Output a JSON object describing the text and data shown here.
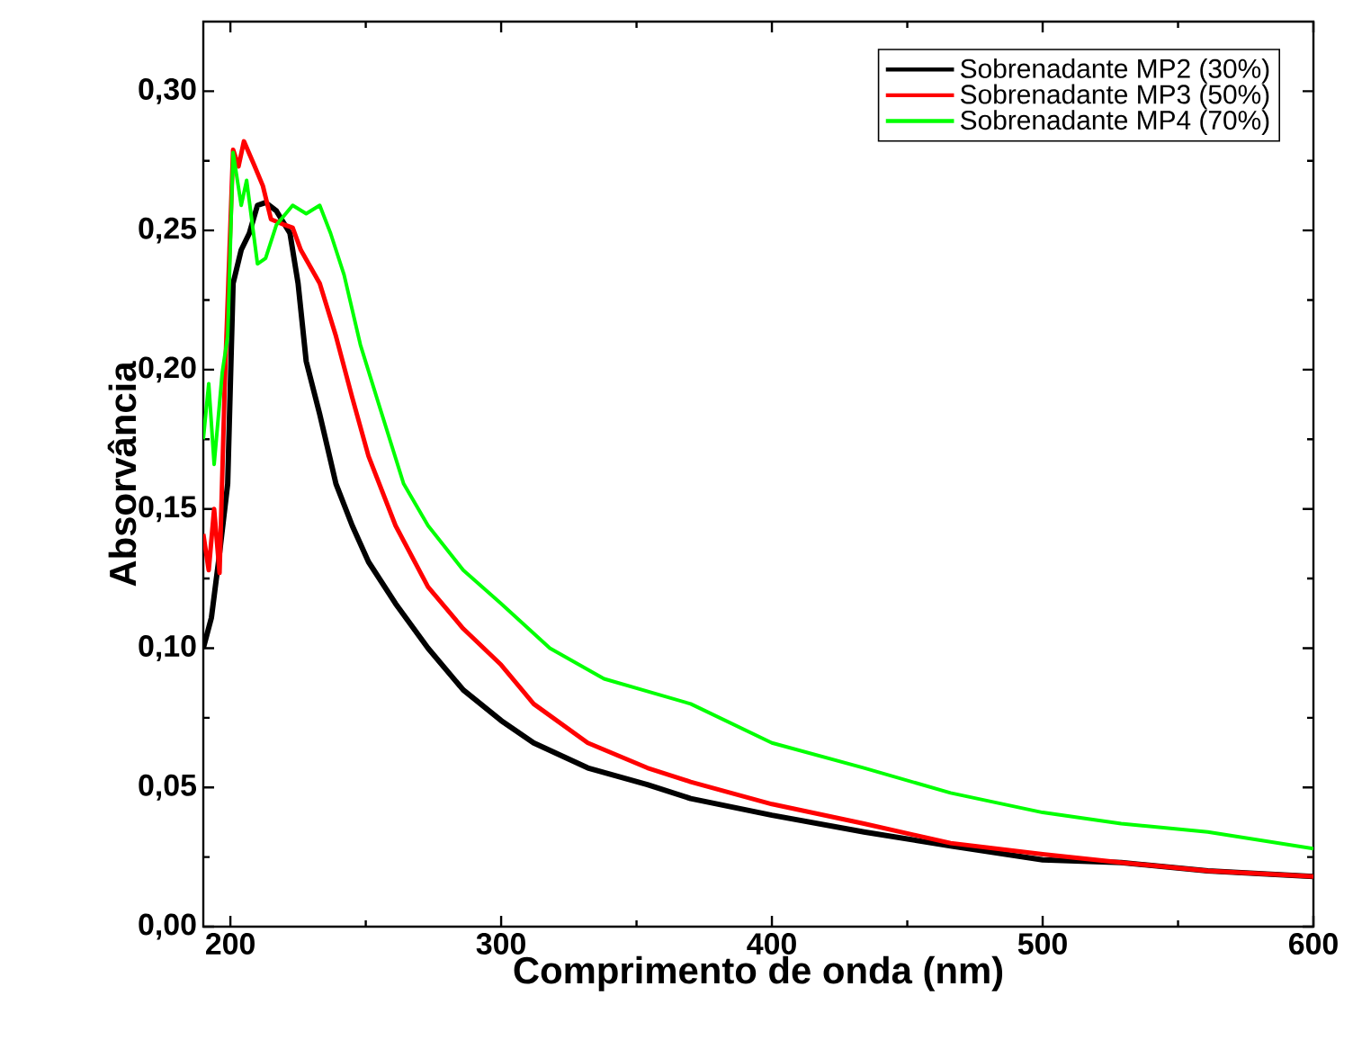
{
  "chart_data": {
    "type": "line",
    "xlabel": "Comprimento de onda (nm)",
    "ylabel": "Absorvância",
    "xlim": [
      190,
      600
    ],
    "ylim": [
      0,
      0.325
    ],
    "xticks": [
      200,
      300,
      400,
      500,
      600
    ],
    "yticks": [
      {
        "value": 0,
        "label": "0,00"
      },
      {
        "value": 0.05,
        "label": "0,05"
      },
      {
        "value": 0.1,
        "label": "0,10"
      },
      {
        "value": 0.15,
        "label": "0,15"
      },
      {
        "value": 0.2,
        "label": "0,20"
      },
      {
        "value": 0.25,
        "label": "0,25"
      },
      {
        "value": 0.3,
        "label": "0,30"
      }
    ],
    "grid": false,
    "legend": "top right",
    "marker": "none",
    "line_style": "solid",
    "series": [
      {
        "name": "Sobrenadante MP2 (30%)",
        "color": "#000000",
        "x": [
          190,
          193,
          196,
          199,
          201,
          204,
          207,
          210,
          213,
          217,
          222,
          225,
          228,
          233,
          239,
          245,
          251,
          261,
          273,
          286,
          300,
          312,
          332,
          354,
          370,
          400,
          434,
          466,
          500,
          529,
          561,
          600
        ],
        "values": [
          0.1,
          0.111,
          0.134,
          0.159,
          0.231,
          0.243,
          0.249,
          0.259,
          0.26,
          0.257,
          0.249,
          0.231,
          0.203,
          0.184,
          0.159,
          0.144,
          0.131,
          0.116,
          0.1,
          0.085,
          0.074,
          0.066,
          0.057,
          0.051,
          0.046,
          0.04,
          0.034,
          0.029,
          0.024,
          0.023,
          0.02,
          0.018
        ]
      },
      {
        "name": "Sobrenadante MP3 (50%)",
        "color": "#ff0000",
        "x": [
          190,
          192,
          194,
          196,
          198,
          201,
          203,
          205,
          209,
          212,
          215,
          220,
          223,
          226,
          233,
          239,
          245,
          251,
          261,
          273,
          286,
          300,
          312,
          332,
          354,
          370,
          400,
          434,
          466,
          500,
          529,
          561,
          600
        ],
        "values": [
          0.141,
          0.128,
          0.15,
          0.127,
          0.197,
          0.279,
          0.273,
          0.282,
          0.273,
          0.266,
          0.254,
          0.252,
          0.251,
          0.243,
          0.231,
          0.212,
          0.19,
          0.169,
          0.144,
          0.122,
          0.107,
          0.094,
          0.08,
          0.066,
          0.057,
          0.052,
          0.044,
          0.037,
          0.03,
          0.026,
          0.023,
          0.02,
          0.018
        ]
      },
      {
        "name": "Sobrenadante MP4 (70%)",
        "color": "#00ff00",
        "x": [
          190,
          192,
          194,
          197,
          199,
          201,
          204,
          206,
          210,
          213,
          217,
          223,
          228,
          233,
          237,
          242,
          248,
          255,
          264,
          273,
          286,
          300,
          318,
          338,
          370,
          400,
          434,
          466,
          500,
          529,
          561,
          600
        ],
        "values": [
          0.175,
          0.195,
          0.166,
          0.199,
          0.212,
          0.278,
          0.259,
          0.268,
          0.238,
          0.24,
          0.252,
          0.259,
          0.256,
          0.259,
          0.249,
          0.234,
          0.209,
          0.187,
          0.159,
          0.144,
          0.128,
          0.116,
          0.1,
          0.089,
          0.08,
          0.066,
          0.057,
          0.048,
          0.041,
          0.037,
          0.034,
          0.028
        ]
      }
    ]
  }
}
